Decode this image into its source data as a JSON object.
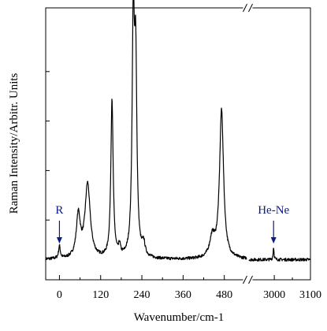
{
  "chart_data": {
    "type": "line",
    "title": "",
    "xlabel": "Wavenumber/cm-1",
    "ylabel": "Raman Intensity/Arbitr. Units",
    "x_ticks": [
      0,
      120,
      240,
      360,
      480,
      3000,
      3100
    ],
    "x_tick_labels": [
      "0",
      "120",
      "240",
      "360",
      "480",
      "3000",
      "3100"
    ],
    "x_segments": [
      {
        "xlim": [
          -40,
          545
        ]
      },
      {
        "xlim": [
          2930,
          3100
        ]
      }
    ],
    "axis_break_symbol": "//",
    "y_ticks_labeled": false,
    "grid": false,
    "legend": "none",
    "line_color": "#000000",
    "annotation_color": "#0d1a8c",
    "baseline": 0.04,
    "peaks": [
      {
        "x": 0,
        "height": 0.05,
        "width": 3
      },
      {
        "x": 55,
        "height": 0.17,
        "width": 7
      },
      {
        "x": 82,
        "height": 0.3,
        "width": 9
      },
      {
        "x": 153,
        "height": 0.64,
        "width": 4
      },
      {
        "x": 175,
        "height": 0.04,
        "width": 3
      },
      {
        "x": 215,
        "height": 0.92,
        "width": 4
      },
      {
        "x": 222,
        "height": 0.74,
        "width": 4
      },
      {
        "x": 245,
        "height": 0.05,
        "width": 5
      },
      {
        "x": 445,
        "height": 0.08,
        "width": 9
      },
      {
        "x": 472,
        "height": 0.6,
        "width": 7
      },
      {
        "x": 2998,
        "height": 0.05,
        "width": 1.5
      }
    ],
    "annotations": [
      {
        "label": "R",
        "x": 0
      },
      {
        "label": "He-Ne",
        "x": 2998
      }
    ]
  }
}
